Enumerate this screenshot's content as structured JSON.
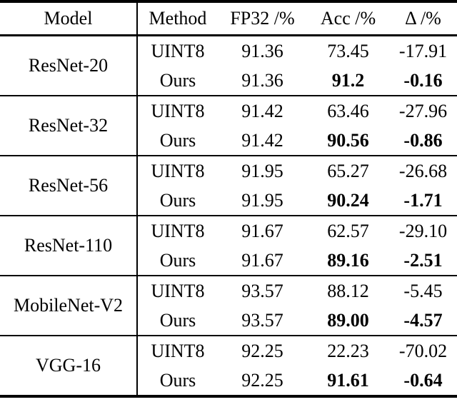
{
  "table": {
    "headers": [
      "Model",
      "Method",
      "FP32 /%",
      "Acc /%",
      "Δ /%"
    ],
    "groups": [
      {
        "model": "ResNet-20",
        "rows": [
          {
            "method": "UINT8",
            "fp32": "91.36",
            "acc": "73.45",
            "delta": "-17.91"
          },
          {
            "method": "Ours",
            "fp32": "91.36",
            "acc": "91.2",
            "delta": "-0.16"
          }
        ]
      },
      {
        "model": "ResNet-32",
        "rows": [
          {
            "method": "UINT8",
            "fp32": "91.42",
            "acc": "63.46",
            "delta": "-27.96"
          },
          {
            "method": "Ours",
            "fp32": "91.42",
            "acc": "90.56",
            "delta": "-0.86"
          }
        ]
      },
      {
        "model": "ResNet-56",
        "rows": [
          {
            "method": "UINT8",
            "fp32": "91.95",
            "acc": "65.27",
            "delta": "-26.68"
          },
          {
            "method": "Ours",
            "fp32": "91.95",
            "acc": "90.24",
            "delta": "-1.71"
          }
        ]
      },
      {
        "model": "ResNet-110",
        "rows": [
          {
            "method": "UINT8",
            "fp32": "91.67",
            "acc": "62.57",
            "delta": "-29.10"
          },
          {
            "method": "Ours",
            "fp32": "91.67",
            "acc": "89.16",
            "delta": "-2.51"
          }
        ]
      },
      {
        "model": "MobileNet-V2",
        "rows": [
          {
            "method": "UINT8",
            "fp32": "93.57",
            "acc": "88.12",
            "delta": "-5.45"
          },
          {
            "method": "Ours",
            "fp32": "93.57",
            "acc": "89.00",
            "delta": "-4.57"
          }
        ]
      },
      {
        "model": "VGG-16",
        "rows": [
          {
            "method": "UINT8",
            "fp32": "92.25",
            "acc": "22.23",
            "delta": "-70.02"
          },
          {
            "method": "Ours",
            "fp32": "92.25",
            "acc": "91.61",
            "delta": "-0.64"
          }
        ]
      }
    ]
  },
  "colors": {
    "text": "#000000",
    "background": "#ffffff",
    "rule": "#000000"
  }
}
